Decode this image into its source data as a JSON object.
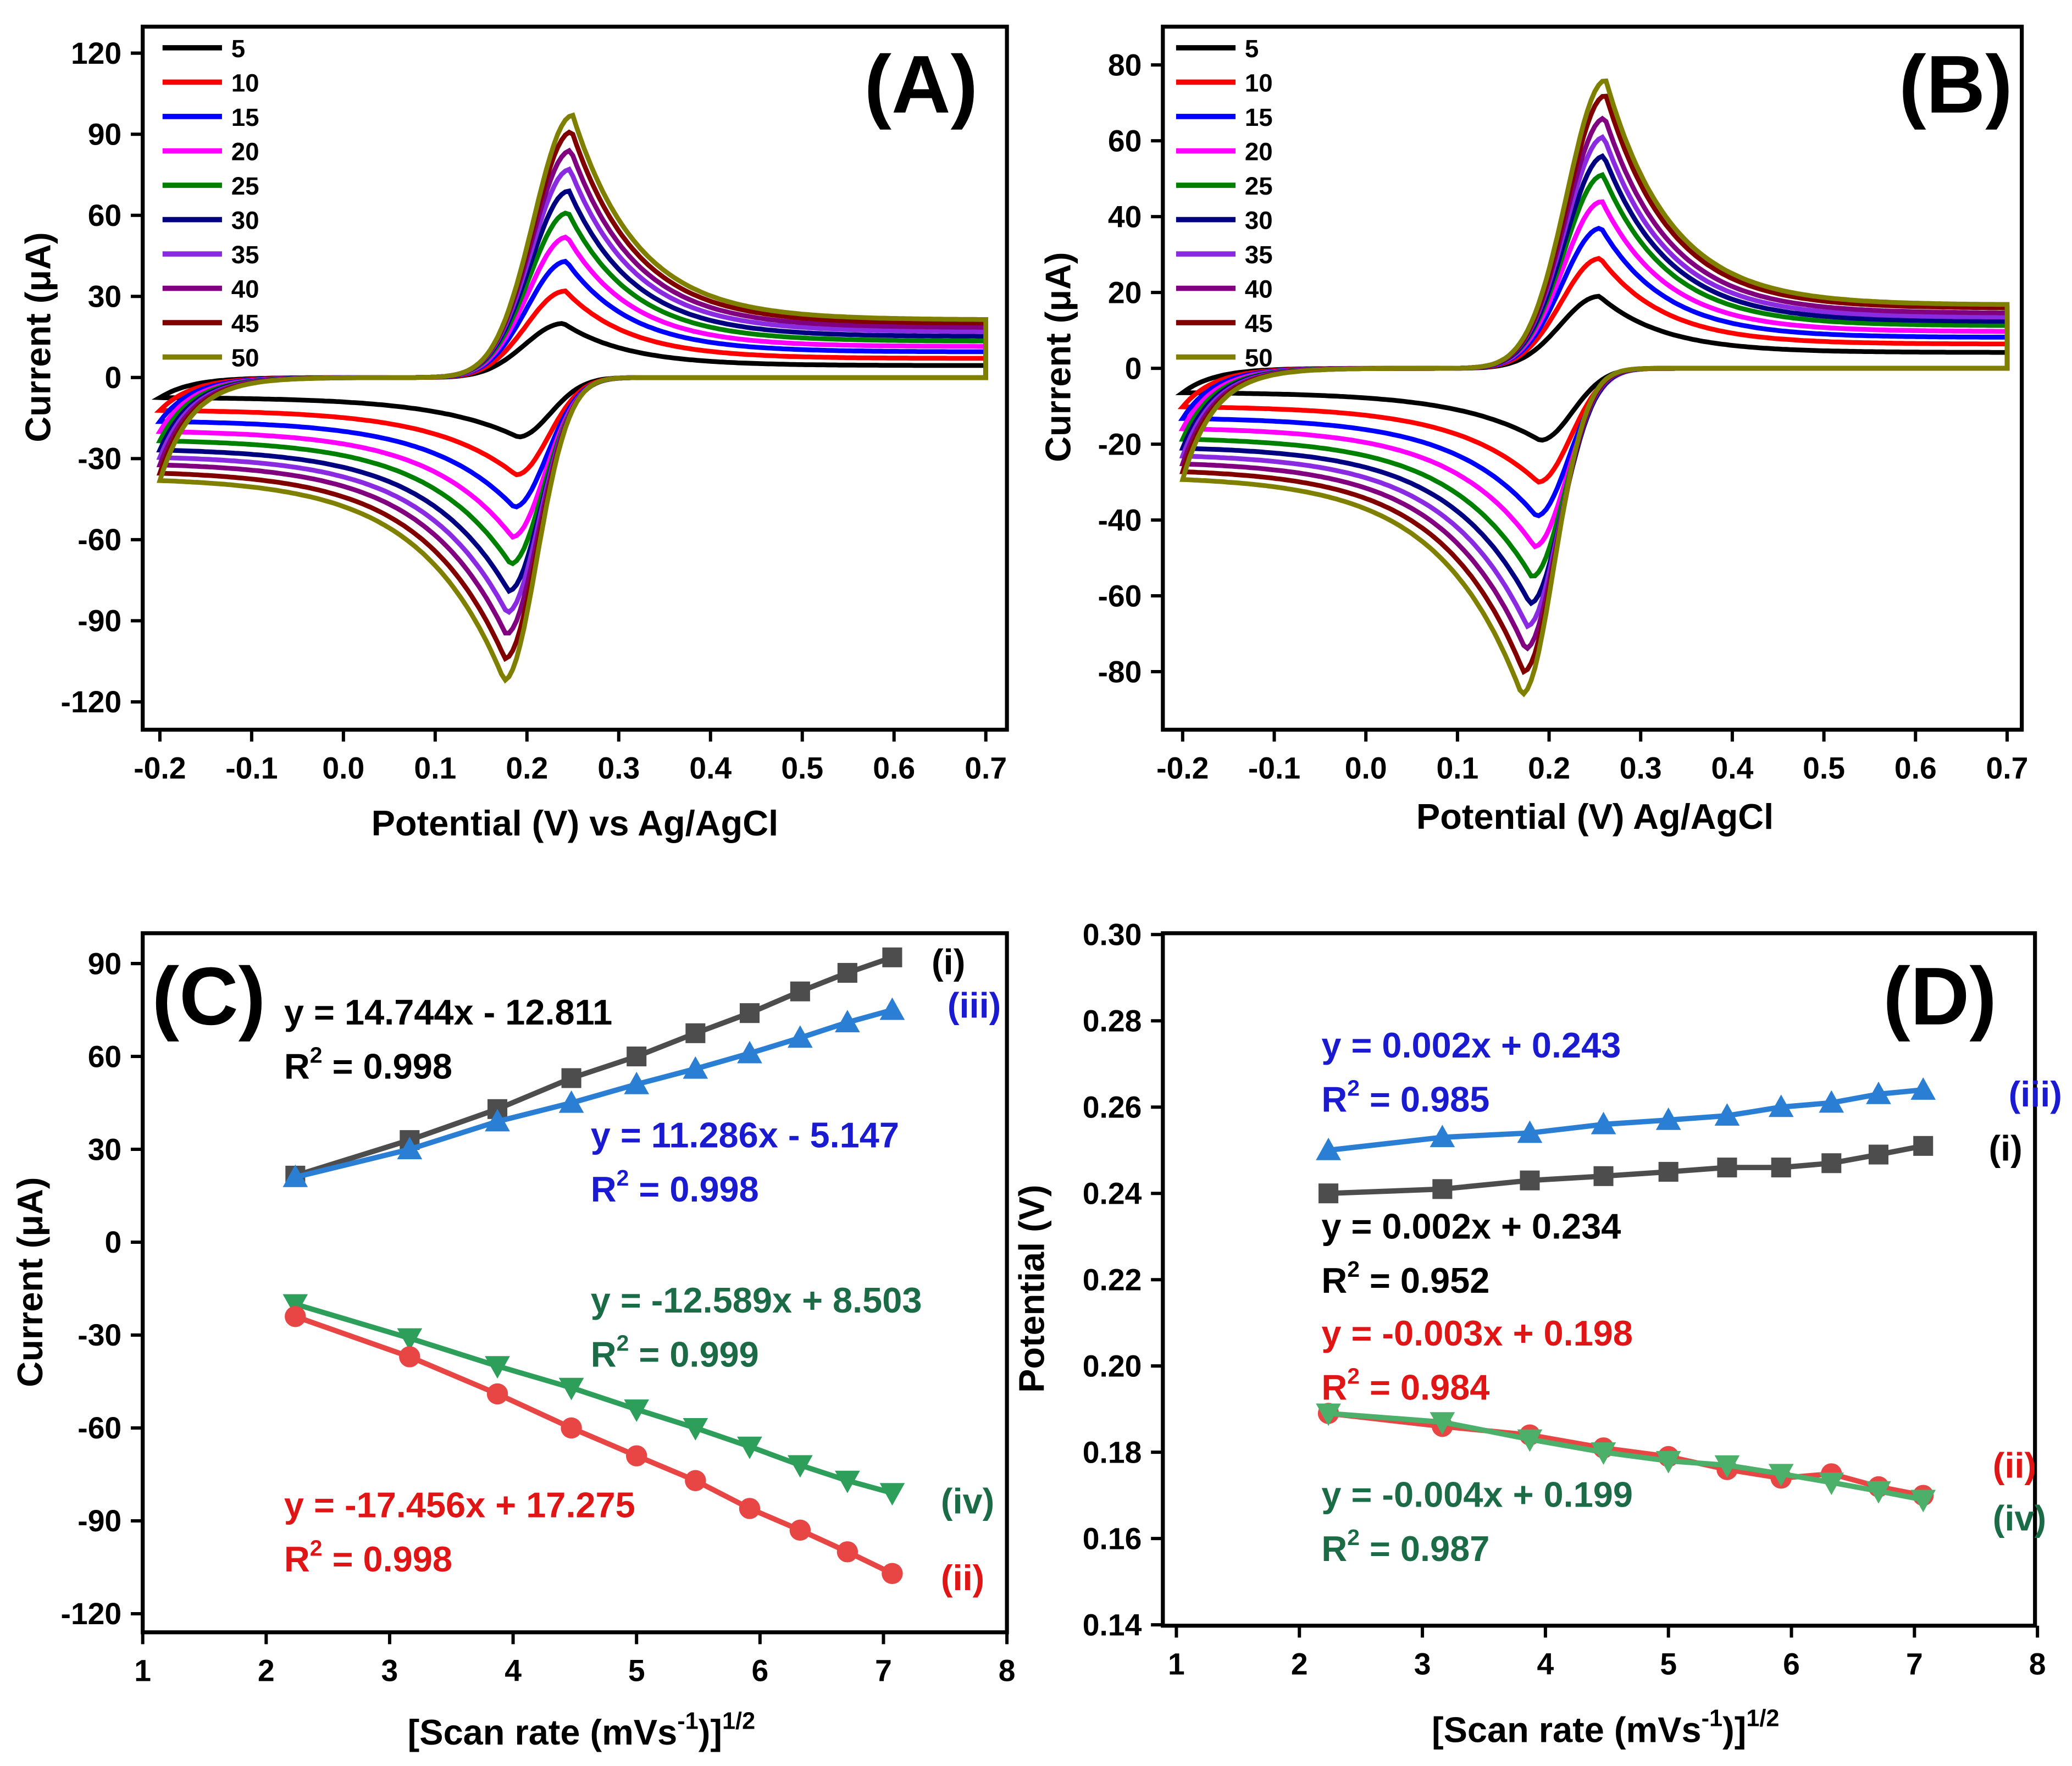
{
  "chart_data": [
    {
      "type": "line",
      "panel_label": "(A)",
      "xlabel": "Potential (V) vs Ag/AgCl",
      "ylabel": "Current (μA)",
      "xlim": [
        -0.2,
        0.7
      ],
      "ylim": [
        -120,
        120
      ],
      "xticks": [
        "-0.2",
        "-0.1",
        "0.0",
        "0.1",
        "0.2",
        "0.3",
        "0.4",
        "0.5",
        "0.6",
        "0.7"
      ],
      "yticks": [
        "120",
        "90",
        "60",
        "30",
        "0",
        "-30",
        "-60",
        "-90",
        "-120"
      ],
      "legend_position": "top-left",
      "legend": [
        "5",
        "10",
        "15",
        "20",
        "25",
        "30",
        "35",
        "40",
        "45",
        "50"
      ],
      "colors": [
        "#000000",
        "#ff0000",
        "#0000ff",
        "#ff00ff",
        "#008000",
        "#000080",
        "#8a2be2",
        "#800080",
        "#800000",
        "#808000"
      ],
      "series_anodic_peak_current": [
        20,
        32,
        43,
        52,
        61,
        69,
        77,
        84,
        91,
        97
      ],
      "series_cathodic_peak_current": [
        -22,
        -36,
        -48,
        -59,
        -69,
        -79,
        -87,
        -95,
        -104,
        -112
      ],
      "anodic_peak_potential": [
        0.24,
        0.242,
        0.243,
        0.244,
        0.245,
        0.246,
        0.247,
        0.248,
        0.249,
        0.25
      ],
      "cathodic_peak_potential": [
        0.19,
        0.188,
        0.186,
        0.184,
        0.182,
        0.18,
        0.178,
        0.177,
        0.176,
        0.175
      ]
    },
    {
      "type": "line",
      "panel_label": "(B)",
      "xlabel": "Potential (V) Ag/AgCl",
      "ylabel": "Current (μA)",
      "xlim": [
        -0.2,
        0.7
      ],
      "ylim": [
        -80,
        80
      ],
      "xticks": [
        "-0.2",
        "-0.1",
        "0.0",
        "0.1",
        "0.2",
        "0.3",
        "0.4",
        "0.5",
        "0.6",
        "0.7"
      ],
      "yticks": [
        "80",
        "60",
        "40",
        "20",
        "0",
        "-20",
        "-40",
        "-60",
        "-80"
      ],
      "legend_position": "top-left",
      "legend": [
        "5",
        "10",
        "15",
        "20",
        "25",
        "30",
        "35",
        "40",
        "45",
        "50"
      ],
      "colors": [
        "#000000",
        "#ff0000",
        "#0000ff",
        "#ff00ff",
        "#008000",
        "#000080",
        "#8a2be2",
        "#800080",
        "#800000",
        "#808000"
      ],
      "series_anodic_peak_current": [
        19,
        29,
        37,
        44,
        51,
        56,
        61,
        66,
        72,
        76
      ],
      "series_cathodic_peak_current": [
        -19,
        -30,
        -39,
        -47,
        -55,
        -62,
        -68,
        -74,
        -80,
        -86
      ],
      "anodic_peak_potential": [
        0.255,
        0.256,
        0.257,
        0.258,
        0.259,
        0.26,
        0.26,
        0.261,
        0.262,
        0.262
      ],
      "cathodic_peak_potential": [
        0.19,
        0.188,
        0.186,
        0.184,
        0.181,
        0.179,
        0.176,
        0.174,
        0.172,
        0.17
      ]
    },
    {
      "type": "scatter",
      "panel_label": "(C)",
      "xlabel_parts": [
        "[Scan rate (mVs",
        "-1",
        ")]",
        "1/2"
      ],
      "ylabel": "Current (μA)",
      "xlim": [
        1,
        8
      ],
      "ylim": [
        -120,
        90
      ],
      "xticks": [
        "1",
        "2",
        "3",
        "4",
        "5",
        "6",
        "7",
        "8"
      ],
      "yticks": [
        "90",
        "60",
        "30",
        "0",
        "-30",
        "-60",
        "-90",
        "-120"
      ],
      "x": [
        2.236,
        3.162,
        3.873,
        4.472,
        5.0,
        5.477,
        5.916,
        6.325,
        6.708,
        7.071
      ],
      "series": [
        {
          "name": "(i)",
          "marker": "square",
          "color": "#4d4d4d",
          "text_color": "#000000",
          "values": [
            21.5,
            33,
            43,
            53,
            60,
            67.5,
            74,
            81,
            87,
            92
          ],
          "equation": "y = 14.744x - 12.811",
          "r2": [
            "R",
            "2",
            " = 0.998"
          ]
        },
        {
          "name": "(iii)",
          "marker": "triangle-up",
          "color": "#2a7fd4",
          "text_color": "#1a1ad0",
          "values": [
            21,
            30,
            39,
            45,
            51,
            56,
            61,
            66,
            71,
            75
          ],
          "equation": "y = 11.286x - 5.147",
          "r2": [
            "R",
            "2",
            " = 0.998"
          ]
        },
        {
          "name": "(iv)",
          "marker": "triangle-down",
          "color": "#2e9e5b",
          "text_color": "#1b6b47",
          "values": [
            -20,
            -31,
            -40,
            -47,
            -54,
            -60,
            -66,
            -72,
            -77,
            -81
          ],
          "equation": "y = -12.589x + 8.503",
          "r2": [
            "R",
            "2",
            " = 0.999"
          ]
        },
        {
          "name": "(ii)",
          "marker": "circle",
          "color": "#e84545",
          "text_color": "#e01515",
          "values": [
            -24,
            -37,
            -49,
            -60,
            -69,
            -77,
            -86,
            -93,
            -100,
            -107
          ],
          "equation": "y = -17.456x + 17.275",
          "r2": [
            "R",
            "2",
            " = 0.998"
          ]
        }
      ]
    },
    {
      "type": "scatter",
      "panel_label": "(D)",
      "xlabel_parts": [
        "[Scan rate (mVs",
        "-1",
        ")]",
        "1/2"
      ],
      "ylabel": "Potential (V)",
      "xlim": [
        1,
        8
      ],
      "ylim": [
        0.14,
        0.3
      ],
      "xticks": [
        "1",
        "2",
        "3",
        "4",
        "5",
        "6",
        "7",
        "8"
      ],
      "yticks": [
        "0.30",
        "0.28",
        "0.26",
        "0.24",
        "0.22",
        "0.20",
        "0.18",
        "0.16",
        "0.14"
      ],
      "x": [
        2.236,
        3.162,
        3.873,
        4.472,
        5.0,
        5.477,
        5.916,
        6.325,
        6.708,
        7.071
      ],
      "series": [
        {
          "name": "(iii)",
          "marker": "triangle-up",
          "color": "#2a7fd4",
          "text_color": "#1a1ad0",
          "values": [
            0.25,
            0.253,
            0.254,
            0.256,
            0.257,
            0.258,
            0.26,
            0.261,
            0.263,
            0.264
          ],
          "equation": "y = 0.002x + 0.243",
          "r2": [
            "R",
            "2",
            " = 0.985"
          ]
        },
        {
          "name": "(i)",
          "marker": "square",
          "color": "#4d4d4d",
          "text_color": "#000000",
          "values": [
            0.24,
            0.241,
            0.243,
            0.244,
            0.245,
            0.246,
            0.246,
            0.247,
            0.249,
            0.251
          ],
          "equation": "y = 0.002x + 0.234",
          "r2": [
            "R",
            "2",
            " = 0.952"
          ]
        },
        {
          "name": "(ii)",
          "marker": "circle",
          "color": "#e84545",
          "text_color": "#e01515",
          "values": [
            0.189,
            0.186,
            0.184,
            0.181,
            0.179,
            0.176,
            0.174,
            0.175,
            0.172,
            0.17
          ],
          "equation": "y = -0.003x + 0.198",
          "r2": [
            "R",
            "2",
            " = 0.984"
          ]
        },
        {
          "name": "(iv)",
          "marker": "triangle-down",
          "color": "#4caf6a",
          "text_color": "#1b6b47",
          "values": [
            0.189,
            0.187,
            0.183,
            0.18,
            0.178,
            0.177,
            0.175,
            0.173,
            0.171,
            0.169
          ],
          "equation": "y = -0.004x + 0.199",
          "r2": [
            "R",
            "2",
            " = 0.987"
          ]
        }
      ]
    }
  ]
}
